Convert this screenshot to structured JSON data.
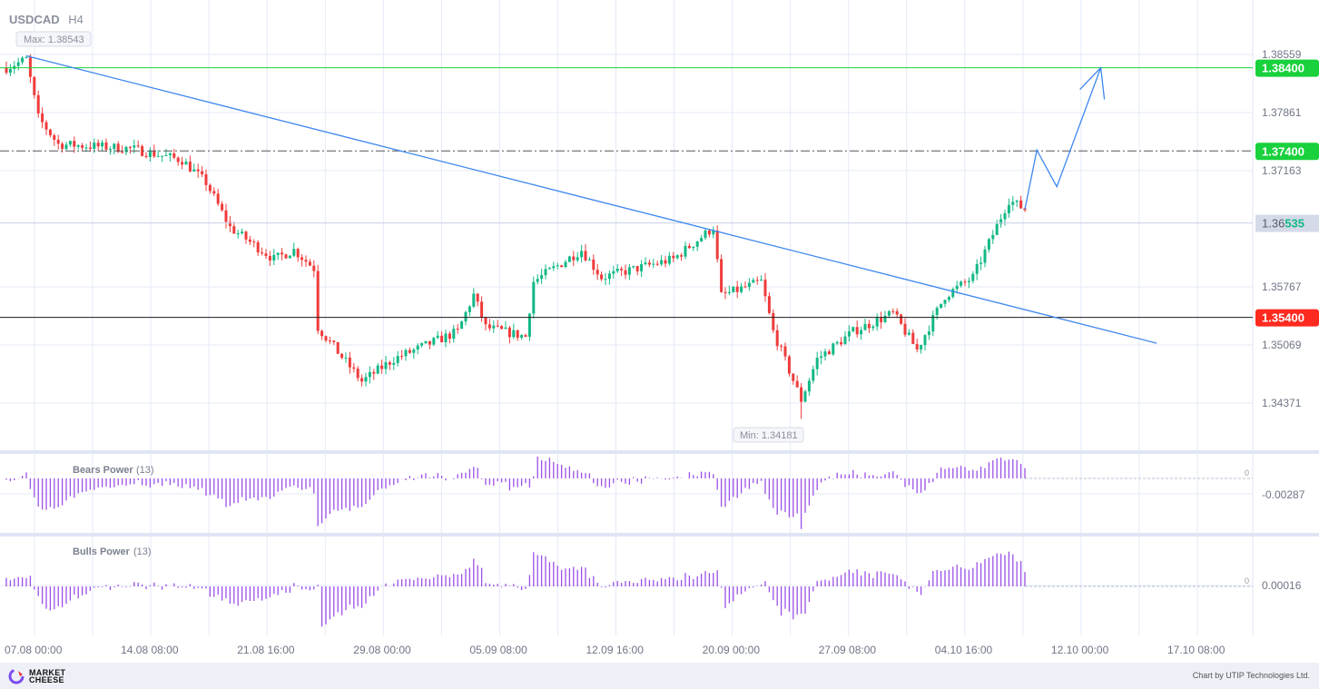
{
  "chart_data": {
    "type": "candlestick",
    "symbol": "USDCAD",
    "timeframe": "H4",
    "max_label": "Max: 1.38543",
    "min_label": "Min: 1.34181",
    "max": 1.38543,
    "min": 1.34181,
    "y_ticks": [
      "1.38559",
      "1.37861",
      "1.37163",
      "1.35767",
      "1.35069",
      "1.34371"
    ],
    "ylim": [
      1.3396,
      1.3897
    ],
    "levels": [
      {
        "value": 1.384,
        "label": "1.38400",
        "color": "#19d13c",
        "style": "solid"
      },
      {
        "value": 1.374,
        "label": "1.37400",
        "color": "#19d13c",
        "style": "dashdot"
      },
      {
        "value": 1.354,
        "label": "1.35400",
        "color": "#ff2a1f",
        "style": "solid"
      }
    ],
    "current_price": {
      "value": 1.36535,
      "label_prefix": "1.36",
      "label_suffix": "535"
    },
    "x_ticks": [
      "07.08 00:00",
      "14.08 08:00",
      "21.08 16:00",
      "29.08 00:00",
      "05.09 08:00",
      "12.09 16:00",
      "20.09 00:00",
      "27.09 08:00",
      "04.10 16:00",
      "12.10 00:00",
      "17.10 08:00"
    ],
    "price_path": [
      [
        0,
        1.384
      ],
      [
        5,
        1.385
      ],
      [
        8,
        1.378
      ],
      [
        13,
        1.3748
      ],
      [
        31,
        1.3743
      ],
      [
        44,
        1.3729
      ],
      [
        50,
        1.3702
      ],
      [
        56,
        1.3648
      ],
      [
        67,
        1.361
      ],
      [
        72,
        1.3621
      ],
      [
        77,
        1.3599
      ],
      [
        78,
        1.3528
      ],
      [
        89,
        1.3463
      ],
      [
        97,
        1.349
      ],
      [
        113,
        1.3523
      ],
      [
        117,
        1.3567
      ],
      [
        120,
        1.3528
      ],
      [
        130,
        1.3517
      ],
      [
        132,
        1.3583
      ],
      [
        144,
        1.3621
      ],
      [
        149,
        1.3588
      ],
      [
        167,
        1.361
      ],
      [
        177,
        1.3648
      ],
      [
        179,
        1.3566
      ],
      [
        189,
        1.3583
      ],
      [
        192,
        1.3523
      ],
      [
        199,
        1.3441
      ],
      [
        203,
        1.349
      ],
      [
        212,
        1.3523
      ],
      [
        222,
        1.3545
      ],
      [
        228,
        1.3501
      ],
      [
        235,
        1.3566
      ],
      [
        242,
        1.3588
      ],
      [
        251,
        1.3681
      ],
      [
        255,
        1.367
      ]
    ],
    "trendline": [
      [
        5,
        1.38543
      ],
      [
        288,
        1.3509
      ]
    ],
    "forecast": [
      [
        255,
        1.367
      ],
      [
        258,
        1.3741
      ],
      [
        263,
        1.3697
      ],
      [
        274,
        1.384
      ]
    ],
    "indicators": [
      {
        "name": "Bears Power",
        "period": "(13)",
        "zero_label": "0",
        "tick": "-0.00287"
      },
      {
        "name": "Bulls Power",
        "period": "(13)",
        "zero_label": "0",
        "tick": "0.00016"
      }
    ]
  },
  "footer": {
    "logo": "MARKET CHEESE",
    "credit": "Chart by UTIP Technologies Ltd."
  }
}
